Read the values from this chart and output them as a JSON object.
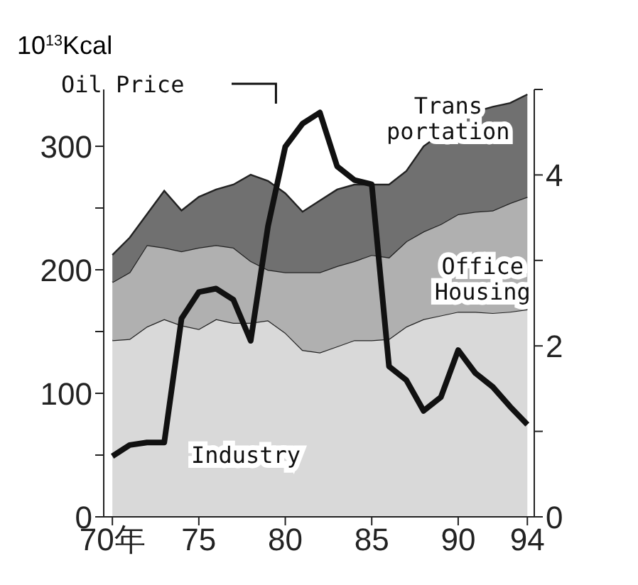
{
  "chart_data": {
    "type": "area",
    "stacked": true,
    "ylabel": "10$^{13}$Kcal",
    "x": [
      70,
      71,
      72,
      73,
      74,
      75,
      76,
      77,
      78,
      79,
      80,
      81,
      82,
      83,
      84,
      85,
      86,
      87,
      88,
      89,
      90,
      91,
      92,
      93,
      94
    ],
    "series": [
      {
        "name": "Industry",
        "color": "#d9d9d9",
        "values": [
          143,
          144,
          154,
          160,
          155,
          152,
          160,
          157,
          157,
          159,
          149,
          135,
          133,
          138,
          143,
          143,
          144,
          154,
          160,
          163,
          166,
          166,
          165,
          166,
          168
        ]
      },
      {
        "name": "Office Housing",
        "color": "#b0b0b0",
        "values": [
          47,
          54,
          66,
          58,
          60,
          66,
          60,
          61,
          50,
          41,
          49,
          63,
          65,
          65,
          64,
          69,
          66,
          69,
          71,
          74,
          79,
          81,
          83,
          88,
          91
        ]
      },
      {
        "name": "Trans portation",
        "color": "#707070",
        "values": [
          22,
          28,
          25,
          46,
          33,
          41,
          45,
          51,
          70,
          72,
          64,
          49,
          58,
          62,
          62,
          57,
          59,
          57,
          69,
          73,
          73,
          81,
          84,
          81,
          83
        ]
      },
      {
        "name": "Oil Price",
        "type": "line",
        "axis": "y2",
        "color": "#111111",
        "values": [
          0.71,
          0.84,
          0.87,
          0.87,
          2.32,
          2.63,
          2.67,
          2.54,
          2.06,
          3.4,
          4.33,
          4.6,
          4.73,
          4.1,
          3.94,
          3.89,
          1.76,
          1.6,
          1.24,
          1.4,
          1.95,
          1.68,
          1.52,
          1.29,
          1.08
        ]
      }
    ],
    "xlim": [
      69.5,
      94.4
    ],
    "xticks": [
      {
        "value": 70,
        "label": "70年"
      },
      75,
      80,
      85,
      90,
      94
    ],
    "ylim": [
      0,
      346
    ],
    "yticks": [
      0,
      {
        "value": 50,
        "label": null
      },
      100,
      {
        "value": 150,
        "label": null
      },
      200,
      {
        "value": 250,
        "label": null
      },
      300
    ],
    "y2lim": [
      0,
      5
    ],
    "y2ticks": [
      0,
      {
        "value": 1,
        "label": null
      },
      2,
      {
        "value": 3,
        "label": null
      },
      4,
      {
        "value": 5,
        "label": null
      }
    ],
    "line_style": "solid",
    "marker": "none",
    "legend": "top left"
  }
}
